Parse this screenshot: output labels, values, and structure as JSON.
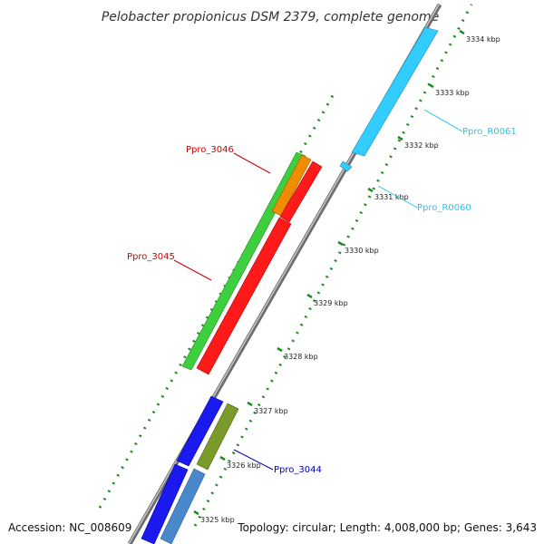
{
  "title": "Pelobacter propionicus DSM 2379, complete genome",
  "scale_labels": [
    "3334 kbp",
    "3333 kbp",
    "3332 kbp",
    "3331 kbp",
    "3330 kbp",
    "3329 kbp",
    "3328 kbp",
    "3327 kbp",
    "3326 kbp",
    "3325 kbp"
  ],
  "genes": [
    {
      "name": "Ppro_R0061",
      "color": "#29c5f0"
    },
    {
      "name": "Ppro_R0060",
      "color": "#29c5f0"
    },
    {
      "name": "Ppro_3046",
      "color": "#cc0000"
    },
    {
      "name": "Ppro_3045",
      "color": "#cc0000"
    },
    {
      "name": "Ppro_3044",
      "color": "#0000aa"
    }
  ],
  "feature_colors": {
    "green": "#3ecf3e",
    "orange": "#f08c00",
    "red": "#ff1a1a",
    "cyan": "#33ccff",
    "blue": "#1a1aee",
    "olive": "#7a9a2a",
    "steel": "#4a88cc",
    "backbone": "#8a8a8a",
    "tick": "#1f8a1f"
  },
  "footer": {
    "accession": "Accession: NC_008609",
    "summary": "Topology: circular; Length: 4,008,000 bp; Genes: 3,643"
  }
}
